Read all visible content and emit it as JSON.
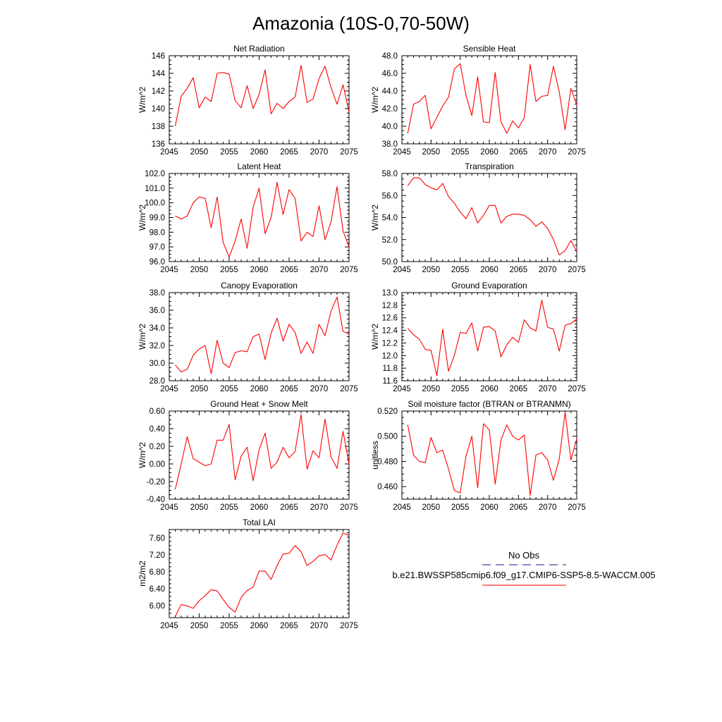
{
  "page_title": "Amazonia (10S-0,70-50W)",
  "legend": {
    "items": [
      {
        "label": "No Obs",
        "color": "#1a1a8c",
        "dash": true
      },
      {
        "label": "b.e21.BWSSP585cmip6.f09_g17.CMIP6-SSP5-8.5-WACCM.005",
        "color": "#ff0000",
        "dash": false
      }
    ]
  },
  "colors": {
    "series": "#ff0000",
    "obs": "#1a1a8c",
    "axis": "#000000"
  },
  "chart_data": [
    {
      "type": "line",
      "title": "Net Radiation",
      "ylabel": "W/m^2",
      "xlim": [
        2045,
        2075
      ],
      "ylim": [
        136,
        146
      ],
      "xticks": [
        2045,
        2050,
        2055,
        2060,
        2065,
        2070,
        2075
      ],
      "xtick_labels": [
        "2045",
        "2050",
        "2055",
        "2060",
        "2065",
        "2070",
        "2075"
      ],
      "yticks": [
        136,
        138,
        140,
        142,
        144,
        146
      ],
      "ytick_labels": [
        "136",
        "138",
        "140",
        "142",
        "144",
        "146"
      ],
      "x": [
        2046,
        2047,
        2048,
        2049,
        2050,
        2051,
        2052,
        2053,
        2054,
        2055,
        2056,
        2057,
        2058,
        2059,
        2060,
        2061,
        2062,
        2063,
        2064,
        2065,
        2066,
        2067,
        2068,
        2069,
        2070,
        2071,
        2072,
        2073,
        2074,
        2075
      ],
      "series": [
        {
          "values": [
            138.0,
            141.4,
            142.3,
            143.5,
            140.1,
            141.3,
            140.8,
            144.0,
            144.1,
            143.9,
            140.9,
            140.1,
            142.6,
            140.0,
            141.6,
            144.4,
            139.4,
            140.6,
            140.0,
            140.8,
            141.3,
            144.9,
            140.7,
            141.1,
            143.4,
            144.8,
            142.4,
            140.5,
            142.7,
            139.6
          ]
        }
      ]
    },
    {
      "type": "line",
      "title": "Sensible Heat",
      "ylabel": "W/m^2",
      "xlim": [
        2045,
        2075
      ],
      "ylim": [
        38,
        48
      ],
      "xticks": [
        2045,
        2050,
        2055,
        2060,
        2065,
        2070,
        2075
      ],
      "xtick_labels": [
        "2045",
        "2050",
        "2055",
        "2060",
        "2065",
        "2070",
        "2075"
      ],
      "yticks": [
        38,
        40,
        42,
        44,
        46,
        48
      ],
      "ytick_labels": [
        "38.0",
        "40.0",
        "42.0",
        "44.0",
        "46.0",
        "48.0"
      ],
      "x": [
        2046,
        2047,
        2048,
        2049,
        2050,
        2051,
        2052,
        2053,
        2054,
        2055,
        2056,
        2057,
        2058,
        2059,
        2060,
        2061,
        2062,
        2063,
        2064,
        2065,
        2066,
        2067,
        2068,
        2069,
        2070,
        2071,
        2072,
        2073,
        2074,
        2075
      ],
      "series": [
        {
          "values": [
            39.2,
            42.5,
            42.8,
            43.5,
            39.7,
            41.0,
            42.3,
            43.3,
            46.5,
            47.1,
            43.5,
            41.2,
            45.6,
            40.5,
            40.4,
            46.1,
            40.5,
            39.2,
            40.6,
            39.8,
            41.0,
            47.0,
            42.8,
            43.4,
            43.5,
            46.8,
            43.9,
            39.6,
            44.3,
            42.4
          ]
        }
      ]
    },
    {
      "type": "line",
      "title": "Latent Heat",
      "ylabel": "W/m^2",
      "xlim": [
        2045,
        2075
      ],
      "ylim": [
        96,
        102
      ],
      "xticks": [
        2045,
        2050,
        2055,
        2060,
        2065,
        2070,
        2075
      ],
      "xtick_labels": [
        "2045",
        "2050",
        "2055",
        "2060",
        "2065",
        "2070",
        "2075"
      ],
      "yticks": [
        96,
        97,
        98,
        99,
        100,
        101,
        102
      ],
      "ytick_labels": [
        "96.0",
        "97.0",
        "98.0",
        "99.0",
        "100.0",
        "101.0",
        "102.0"
      ],
      "x": [
        2046,
        2047,
        2048,
        2049,
        2050,
        2051,
        2052,
        2053,
        2054,
        2055,
        2056,
        2057,
        2058,
        2059,
        2060,
        2061,
        2062,
        2063,
        2064,
        2065,
        2066,
        2067,
        2068,
        2069,
        2070,
        2071,
        2072,
        2073,
        2074,
        2075
      ],
      "series": [
        {
          "values": [
            99.1,
            98.9,
            99.1,
            100.0,
            100.4,
            100.3,
            98.3,
            100.4,
            97.3,
            96.3,
            97.4,
            98.9,
            96.9,
            99.7,
            101.0,
            97.9,
            99.0,
            101.4,
            99.2,
            100.9,
            100.3,
            97.4,
            98.0,
            97.7,
            99.8,
            97.5,
            98.7,
            101.1,
            98.1,
            97.0
          ]
        }
      ]
    },
    {
      "type": "line",
      "title": "Transpiration",
      "ylabel": "W/m^2",
      "xlim": [
        2045,
        2075
      ],
      "ylim": [
        50,
        58
      ],
      "xticks": [
        2045,
        2050,
        2055,
        2060,
        2065,
        2070,
        2075
      ],
      "xtick_labels": [
        "2045",
        "2050",
        "2055",
        "2060",
        "2065",
        "2070",
        "2075"
      ],
      "yticks": [
        50,
        52,
        54,
        56,
        58
      ],
      "ytick_labels": [
        "50.0",
        "52.0",
        "54.0",
        "56.0",
        "58.0"
      ],
      "x": [
        2046,
        2047,
        2048,
        2049,
        2050,
        2051,
        2052,
        2053,
        2054,
        2055,
        2056,
        2057,
        2058,
        2059,
        2060,
        2061,
        2062,
        2063,
        2064,
        2065,
        2066,
        2067,
        2068,
        2069,
        2070,
        2071,
        2072,
        2073,
        2074,
        2075
      ],
      "series": [
        {
          "values": [
            56.9,
            57.6,
            57.6,
            57.0,
            56.7,
            56.5,
            57.1,
            55.9,
            55.3,
            54.5,
            53.9,
            54.9,
            53.5,
            54.2,
            55.1,
            55.1,
            53.5,
            54.1,
            54.3,
            54.3,
            54.2,
            53.8,
            53.2,
            53.6,
            53.0,
            52.0,
            50.6,
            51.0,
            51.9,
            50.9
          ]
        }
      ]
    },
    {
      "type": "line",
      "title": "Canopy Evaporation",
      "ylabel": "W/m^2",
      "xlim": [
        2045,
        2075
      ],
      "ylim": [
        28,
        38
      ],
      "xticks": [
        2045,
        2050,
        2055,
        2060,
        2065,
        2070,
        2075
      ],
      "xtick_labels": [
        "2045",
        "2050",
        "2055",
        "2060",
        "2065",
        "2070",
        "2075"
      ],
      "yticks": [
        28,
        30,
        32,
        34,
        36,
        38
      ],
      "ytick_labels": [
        "28.0",
        "30.0",
        "32.0",
        "34.0",
        "36.0",
        "38.0"
      ],
      "x": [
        2046,
        2047,
        2048,
        2049,
        2050,
        2051,
        2052,
        2053,
        2054,
        2055,
        2056,
        2057,
        2058,
        2059,
        2060,
        2061,
        2062,
        2063,
        2064,
        2065,
        2066,
        2067,
        2068,
        2069,
        2070,
        2071,
        2072,
        2073,
        2074,
        2075
      ],
      "series": [
        {
          "values": [
            29.8,
            29.0,
            29.3,
            30.9,
            31.6,
            32.0,
            28.8,
            32.6,
            30.0,
            29.5,
            31.2,
            31.4,
            31.3,
            33.0,
            33.3,
            30.4,
            33.4,
            35.1,
            32.5,
            34.4,
            33.5,
            31.1,
            32.4,
            31.1,
            34.4,
            33.1,
            35.9,
            37.5,
            33.6,
            33.3
          ]
        }
      ]
    },
    {
      "type": "line",
      "title": "Ground Evaporation",
      "ylabel": "W/m^2",
      "xlim": [
        2045,
        2075
      ],
      "ylim": [
        11.6,
        13.0
      ],
      "xticks": [
        2045,
        2050,
        2055,
        2060,
        2065,
        2070,
        2075
      ],
      "xtick_labels": [
        "2045",
        "2050",
        "2055",
        "2060",
        "2065",
        "2070",
        "2075"
      ],
      "yticks": [
        11.6,
        11.8,
        12.0,
        12.2,
        12.4,
        12.6,
        12.8,
        13.0
      ],
      "ytick_labels": [
        "11.6",
        "11.8",
        "12.0",
        "12.2",
        "12.4",
        "12.6",
        "12.8",
        "13.0"
      ],
      "x": [
        2046,
        2047,
        2048,
        2049,
        2050,
        2051,
        2052,
        2053,
        2054,
        2055,
        2056,
        2057,
        2058,
        2059,
        2060,
        2061,
        2062,
        2063,
        2064,
        2065,
        2066,
        2067,
        2068,
        2069,
        2070,
        2071,
        2072,
        2073,
        2074,
        2075
      ],
      "series": [
        {
          "values": [
            12.43,
            12.33,
            12.26,
            12.1,
            12.08,
            11.68,
            12.42,
            11.75,
            12.0,
            12.37,
            12.35,
            12.52,
            12.07,
            12.45,
            12.46,
            12.39,
            11.98,
            12.17,
            12.29,
            12.21,
            12.57,
            12.44,
            12.39,
            12.88,
            12.45,
            12.42,
            12.07,
            12.48,
            12.51,
            12.58
          ]
        }
      ]
    },
    {
      "type": "line",
      "title": "Ground Heat + Snow Melt",
      "ylabel": "W/m^2",
      "xlim": [
        2045,
        2075
      ],
      "ylim": [
        -0.4,
        0.6
      ],
      "xticks": [
        2045,
        2050,
        2055,
        2060,
        2065,
        2070,
        2075
      ],
      "xtick_labels": [
        "2045",
        "2050",
        "2055",
        "2060",
        "2065",
        "2070",
        "2075"
      ],
      "yticks": [
        -0.4,
        -0.2,
        0.0,
        0.2,
        0.4,
        0.6
      ],
      "ytick_labels": [
        "-0.40",
        "-0.20",
        "0.00",
        "0.20",
        "0.40",
        "0.60"
      ],
      "x": [
        2046,
        2047,
        2048,
        2049,
        2050,
        2051,
        2052,
        2053,
        2054,
        2055,
        2056,
        2057,
        2058,
        2059,
        2060,
        2061,
        2062,
        2063,
        2064,
        2065,
        2066,
        2067,
        2068,
        2069,
        2070,
        2071,
        2072,
        2073,
        2074,
        2075
      ],
      "series": [
        {
          "values": [
            -0.29,
            0.0,
            0.31,
            0.06,
            0.02,
            -0.02,
            0.0,
            0.27,
            0.27,
            0.45,
            -0.18,
            0.09,
            0.19,
            -0.19,
            0.16,
            0.35,
            -0.05,
            0.02,
            0.19,
            0.07,
            0.14,
            0.56,
            -0.06,
            0.15,
            0.07,
            0.51,
            0.08,
            -0.05,
            0.37,
            0.0
          ]
        }
      ]
    },
    {
      "type": "line",
      "title": "Soil moisture factor (BTRAN or BTRANMN)",
      "ylabel": "unitless",
      "xlim": [
        2045,
        2075
      ],
      "ylim": [
        0.45,
        0.52
      ],
      "xticks": [
        2045,
        2050,
        2055,
        2060,
        2065,
        2070,
        2075
      ],
      "xtick_labels": [
        "2045",
        "2050",
        "2055",
        "2060",
        "2065",
        "2070",
        "2075"
      ],
      "yticks": [
        0.46,
        0.48,
        0.5,
        0.52
      ],
      "ytick_labels": [
        "0.460",
        "0.480",
        "0.500",
        "0.520"
      ],
      "x": [
        2046,
        2047,
        2048,
        2049,
        2050,
        2051,
        2052,
        2053,
        2054,
        2055,
        2056,
        2057,
        2058,
        2059,
        2060,
        2061,
        2062,
        2063,
        2064,
        2065,
        2066,
        2067,
        2068,
        2069,
        2070,
        2071,
        2072,
        2073,
        2074,
        2075
      ],
      "series": [
        {
          "values": [
            0.509,
            0.485,
            0.48,
            0.479,
            0.499,
            0.487,
            0.489,
            0.474,
            0.457,
            0.455,
            0.484,
            0.5,
            0.459,
            0.51,
            0.505,
            0.462,
            0.497,
            0.509,
            0.5,
            0.497,
            0.501,
            0.453,
            0.485,
            0.487,
            0.481,
            0.465,
            0.482,
            0.519,
            0.481,
            0.498
          ]
        }
      ]
    },
    {
      "type": "line",
      "title": "Total LAI",
      "ylabel": "m2/m2",
      "xlim": [
        2045,
        2075
      ],
      "ylim": [
        5.72,
        7.8
      ],
      "xticks": [
        2045,
        2050,
        2055,
        2060,
        2065,
        2070,
        2075
      ],
      "xtick_labels": [
        "2045",
        "2050",
        "2055",
        "2060",
        "2065",
        "2070",
        "2075"
      ],
      "yticks": [
        6.0,
        6.4,
        6.8,
        7.2,
        7.6
      ],
      "ytick_labels": [
        "6.00",
        "6.40",
        "6.80",
        "7.20",
        "7.60"
      ],
      "x": [
        2046,
        2047,
        2048,
        2049,
        2050,
        2051,
        2052,
        2053,
        2054,
        2055,
        2056,
        2057,
        2058,
        2059,
        2060,
        2061,
        2062,
        2063,
        2064,
        2065,
        2066,
        2067,
        2068,
        2069,
        2070,
        2071,
        2072,
        2073,
        2074,
        2075
      ],
      "series": [
        {
          "values": [
            5.75,
            6.03,
            6.0,
            5.94,
            6.12,
            6.24,
            6.38,
            6.35,
            6.15,
            5.96,
            5.85,
            6.2,
            6.36,
            6.44,
            6.82,
            6.82,
            6.62,
            6.95,
            7.22,
            7.24,
            7.42,
            7.28,
            6.95,
            7.05,
            7.18,
            7.21,
            7.08,
            7.43,
            7.72,
            7.66
          ]
        }
      ]
    }
  ]
}
